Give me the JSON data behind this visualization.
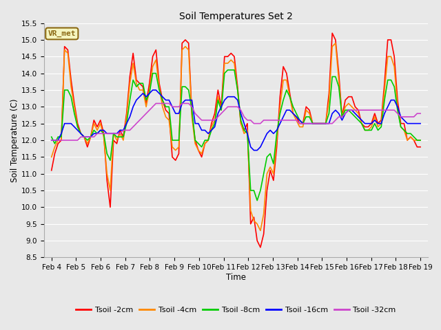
{
  "title": "Soil Temperatures Set 2",
  "xlabel": "Time",
  "ylabel": "Soil Temperature (C)",
  "ylim": [
    8.5,
    15.5
  ],
  "yticks": [
    8.5,
    9.0,
    9.5,
    10.0,
    10.5,
    11.0,
    11.5,
    12.0,
    12.5,
    13.0,
    13.5,
    14.0,
    14.5,
    15.0,
    15.5
  ],
  "xtick_labels": [
    "Feb 4",
    "Feb 5",
    "Feb 6",
    "Feb 7",
    "Feb 8",
    "Feb 9",
    "Feb 10",
    "Feb 11",
    "Feb 12",
    "Feb 13",
    "Feb 14",
    "Feb 15",
    "Feb 16",
    "Feb 17",
    "Feb 18",
    "Feb 19"
  ],
  "background_color": "#e8e8e8",
  "plot_bg_color": "#e8e8e8",
  "grid_color": "#ffffff",
  "annotation_text": "VR_met",
  "annotation_bg": "#f5f5c0",
  "annotation_border": "#8b6914",
  "series": [
    {
      "label": "Tsoil -2cm",
      "color": "#ff0000",
      "linewidth": 1.2,
      "data": [
        11.1,
        11.6,
        11.9,
        12.0,
        14.8,
        14.7,
        13.8,
        13.1,
        12.5,
        12.2,
        12.1,
        11.8,
        12.1,
        12.6,
        12.4,
        12.6,
        12.2,
        10.8,
        10.0,
        12.0,
        11.9,
        12.3,
        12.1,
        12.8,
        13.9,
        14.6,
        13.8,
        13.7,
        13.6,
        13.1,
        13.7,
        14.5,
        14.7,
        13.7,
        13.2,
        12.9,
        12.8,
        11.5,
        11.4,
        11.6,
        14.9,
        15.0,
        14.9,
        12.8,
        12.0,
        11.7,
        11.5,
        11.9,
        12.0,
        12.5,
        12.8,
        13.5,
        13.0,
        14.5,
        14.5,
        14.6,
        14.5,
        13.6,
        12.5,
        12.3,
        12.5,
        9.5,
        9.7,
        9.0,
        8.8,
        9.2,
        10.5,
        11.1,
        10.8,
        11.8,
        13.3,
        14.2,
        14.0,
        13.4,
        12.8,
        12.7,
        12.5,
        12.5,
        13.0,
        12.9,
        12.5,
        12.5,
        12.5,
        12.5,
        12.5,
        13.4,
        15.2,
        15.0,
        14.0,
        12.7,
        13.2,
        13.3,
        13.3,
        13.0,
        12.9,
        12.5,
        12.4,
        12.4,
        12.5,
        12.8,
        12.5,
        12.6,
        13.7,
        15.0,
        15.0,
        14.5,
        13.2,
        12.5,
        12.5,
        12.0,
        12.1,
        12.0,
        11.8,
        11.8
      ]
    },
    {
      "label": "Tsoil -4cm",
      "color": "#ff8800",
      "linewidth": 1.2,
      "data": [
        11.5,
        11.8,
        12.0,
        12.0,
        14.7,
        14.6,
        13.6,
        13.0,
        12.4,
        12.2,
        12.1,
        11.9,
        12.1,
        12.5,
        12.3,
        12.5,
        12.1,
        11.0,
        10.5,
        12.2,
        12.0,
        12.2,
        12.0,
        12.7,
        13.7,
        14.3,
        13.7,
        13.5,
        13.5,
        13.0,
        13.5,
        14.2,
        14.4,
        13.6,
        13.0,
        12.7,
        12.6,
        11.8,
        11.7,
        11.8,
        14.7,
        14.8,
        14.7,
        12.7,
        11.9,
        11.7,
        11.6,
        11.9,
        12.0,
        12.4,
        12.6,
        13.3,
        12.9,
        14.3,
        14.3,
        14.4,
        14.3,
        13.5,
        12.5,
        12.2,
        12.3,
        9.9,
        9.6,
        9.5,
        9.3,
        9.8,
        11.0,
        11.2,
        11.0,
        12.0,
        13.0,
        13.8,
        13.8,
        13.3,
        12.8,
        12.6,
        12.4,
        12.4,
        12.9,
        12.8,
        12.5,
        12.5,
        12.5,
        12.5,
        12.5,
        13.2,
        14.8,
        14.9,
        13.8,
        12.7,
        13.0,
        13.1,
        13.0,
        12.9,
        12.8,
        12.5,
        12.3,
        12.3,
        12.4,
        12.7,
        12.4,
        12.5,
        13.5,
        14.5,
        14.5,
        14.2,
        13.0,
        12.4,
        12.3,
        12.0,
        12.1,
        12.0,
        12.0,
        12.0
      ]
    },
    {
      "label": "Tsoil -8cm",
      "color": "#00cc00",
      "linewidth": 1.2,
      "data": [
        12.1,
        11.9,
        12.1,
        12.1,
        13.5,
        13.5,
        13.3,
        12.8,
        12.4,
        12.2,
        12.1,
        12.0,
        12.1,
        12.3,
        12.2,
        12.3,
        12.2,
        11.6,
        11.4,
        12.2,
        12.1,
        12.1,
        12.1,
        12.5,
        13.2,
        13.8,
        13.6,
        13.7,
        13.7,
        13.2,
        13.4,
        14.0,
        14.0,
        13.5,
        13.2,
        13.0,
        13.0,
        12.0,
        12.0,
        12.0,
        13.6,
        13.6,
        13.5,
        12.9,
        12.0,
        11.9,
        11.8,
        12.0,
        12.0,
        12.3,
        12.5,
        13.2,
        12.9,
        14.0,
        14.1,
        14.1,
        14.1,
        13.5,
        12.6,
        12.3,
        12.2,
        10.5,
        10.5,
        10.2,
        10.5,
        11.0,
        11.5,
        11.6,
        11.3,
        12.2,
        12.8,
        13.2,
        13.5,
        13.3,
        13.0,
        12.8,
        12.6,
        12.5,
        12.7,
        12.7,
        12.5,
        12.5,
        12.5,
        12.5,
        12.5,
        12.8,
        13.9,
        13.9,
        13.6,
        12.7,
        12.9,
        12.9,
        12.8,
        12.7,
        12.6,
        12.5,
        12.3,
        12.3,
        12.3,
        12.5,
        12.3,
        12.4,
        13.2,
        13.8,
        13.8,
        13.6,
        12.9,
        12.4,
        12.3,
        12.2,
        12.2,
        12.1,
        12.0,
        12.0
      ]
    },
    {
      "label": "Tsoil -16cm",
      "color": "#0000ff",
      "linewidth": 1.2,
      "data": [
        12.0,
        12.0,
        12.0,
        12.2,
        12.5,
        12.5,
        12.5,
        12.4,
        12.3,
        12.2,
        12.1,
        12.1,
        12.1,
        12.2,
        12.2,
        12.3,
        12.3,
        12.2,
        12.2,
        12.2,
        12.2,
        12.3,
        12.3,
        12.5,
        12.7,
        13.0,
        13.2,
        13.3,
        13.4,
        13.3,
        13.4,
        13.5,
        13.5,
        13.4,
        13.3,
        13.2,
        13.2,
        13.0,
        12.8,
        12.8,
        13.1,
        13.2,
        13.2,
        13.2,
        12.5,
        12.5,
        12.3,
        12.3,
        12.2,
        12.3,
        12.4,
        12.8,
        13.0,
        13.2,
        13.3,
        13.3,
        13.3,
        13.2,
        12.8,
        12.5,
        12.2,
        11.8,
        11.7,
        11.7,
        11.8,
        12.0,
        12.2,
        12.3,
        12.2,
        12.3,
        12.5,
        12.7,
        12.9,
        12.9,
        12.8,
        12.7,
        12.6,
        12.5,
        12.5,
        12.5,
        12.5,
        12.5,
        12.5,
        12.5,
        12.5,
        12.5,
        12.8,
        12.9,
        12.8,
        12.6,
        12.8,
        12.9,
        12.9,
        12.8,
        12.7,
        12.6,
        12.5,
        12.5,
        12.5,
        12.6,
        12.5,
        12.5,
        12.8,
        13.0,
        13.2,
        13.2,
        13.0,
        12.7,
        12.6,
        12.5,
        12.5,
        12.5,
        12.5,
        12.5
      ]
    },
    {
      "label": "Tsoil -32cm",
      "color": "#cc44cc",
      "linewidth": 1.2,
      "data": [
        12.0,
        12.0,
        12.0,
        12.0,
        12.0,
        12.0,
        12.0,
        12.0,
        12.0,
        12.1,
        12.1,
        12.1,
        12.1,
        12.1,
        12.2,
        12.2,
        12.2,
        12.2,
        12.2,
        12.2,
        12.2,
        12.2,
        12.3,
        12.3,
        12.3,
        12.4,
        12.5,
        12.6,
        12.7,
        12.8,
        12.9,
        13.0,
        13.1,
        13.1,
        13.1,
        13.1,
        13.1,
        13.0,
        13.0,
        13.0,
        13.1,
        13.1,
        13.1,
        13.0,
        12.8,
        12.7,
        12.6,
        12.6,
        12.6,
        12.6,
        12.6,
        12.7,
        12.8,
        12.9,
        13.0,
        13.0,
        13.0,
        13.0,
        12.9,
        12.7,
        12.6,
        12.6,
        12.5,
        12.5,
        12.5,
        12.6,
        12.6,
        12.6,
        12.6,
        12.6,
        12.6,
        12.6,
        12.6,
        12.6,
        12.6,
        12.6,
        12.5,
        12.5,
        12.5,
        12.5,
        12.5,
        12.5,
        12.5,
        12.5,
        12.5,
        12.5,
        12.5,
        12.6,
        12.7,
        12.7,
        12.8,
        12.9,
        12.9,
        12.9,
        12.9,
        12.9,
        12.9,
        12.9,
        12.9,
        12.9,
        12.9,
        12.9,
        12.9,
        12.9,
        12.9,
        12.9,
        12.8,
        12.7,
        12.7,
        12.7,
        12.7,
        12.7,
        12.8,
        12.8
      ]
    }
  ]
}
